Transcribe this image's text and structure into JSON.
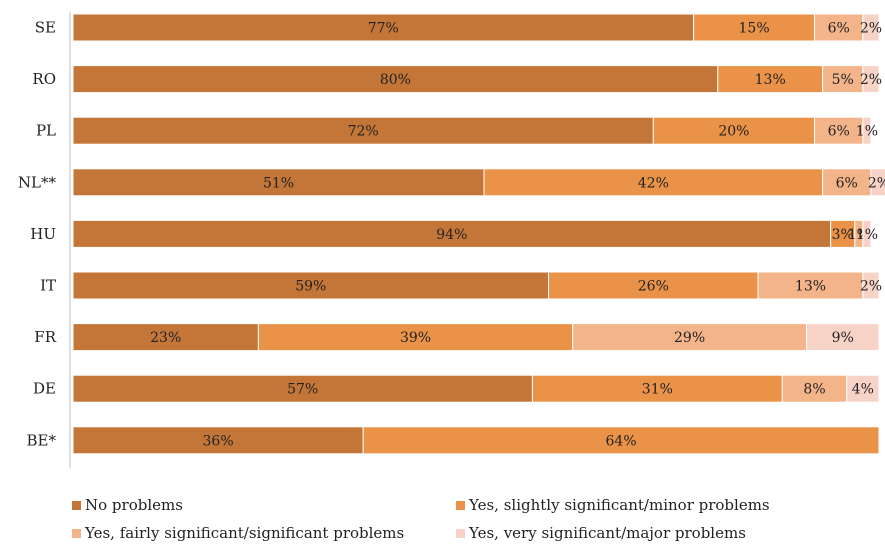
{
  "chart_data": {
    "type": "bar",
    "orientation": "horizontal",
    "stacked": true,
    "categories": [
      "SE",
      "RO",
      "PL",
      "NL**",
      "HU",
      "IT",
      "FR",
      "DE",
      "BE*"
    ],
    "series": [
      {
        "name": "No problems",
        "color": "#C47638",
        "values": [
          77,
          80,
          72,
          51,
          94,
          59,
          23,
          57,
          36
        ],
        "labels": [
          "77%",
          "80%",
          "72%",
          "51%",
          "94%",
          "59%",
          "23%",
          "57%",
          "36%"
        ]
      },
      {
        "name": "Yes, slightly significant/minor problems",
        "color": "#EA9348",
        "values": [
          15,
          13,
          20,
          42,
          3,
          26,
          39,
          31,
          64
        ],
        "labels": [
          "15%",
          "13%",
          "20%",
          "42%",
          "3%",
          "26%",
          "39%",
          "31%",
          "64%"
        ]
      },
      {
        "name": "Yes, fairly significant/significant problems",
        "color": "#F4B48A",
        "values": [
          6,
          5,
          6,
          6,
          1,
          13,
          29,
          8,
          0
        ],
        "labels": [
          "6%",
          "5%",
          "6%",
          "6%",
          "1%",
          "13%",
          "29%",
          "8%",
          ""
        ]
      },
      {
        "name": "Yes, very significant/major problems",
        "color": "#F7D3C7",
        "values": [
          2,
          2,
          1,
          2,
          1,
          2,
          9,
          4,
          0
        ],
        "labels": [
          "2%",
          "2%",
          "1%",
          "2%",
          "1%",
          "2%",
          "9%",
          "4%",
          ""
        ]
      }
    ],
    "xlim": [
      0,
      100
    ],
    "grid": false,
    "legend_position": "bottom"
  }
}
